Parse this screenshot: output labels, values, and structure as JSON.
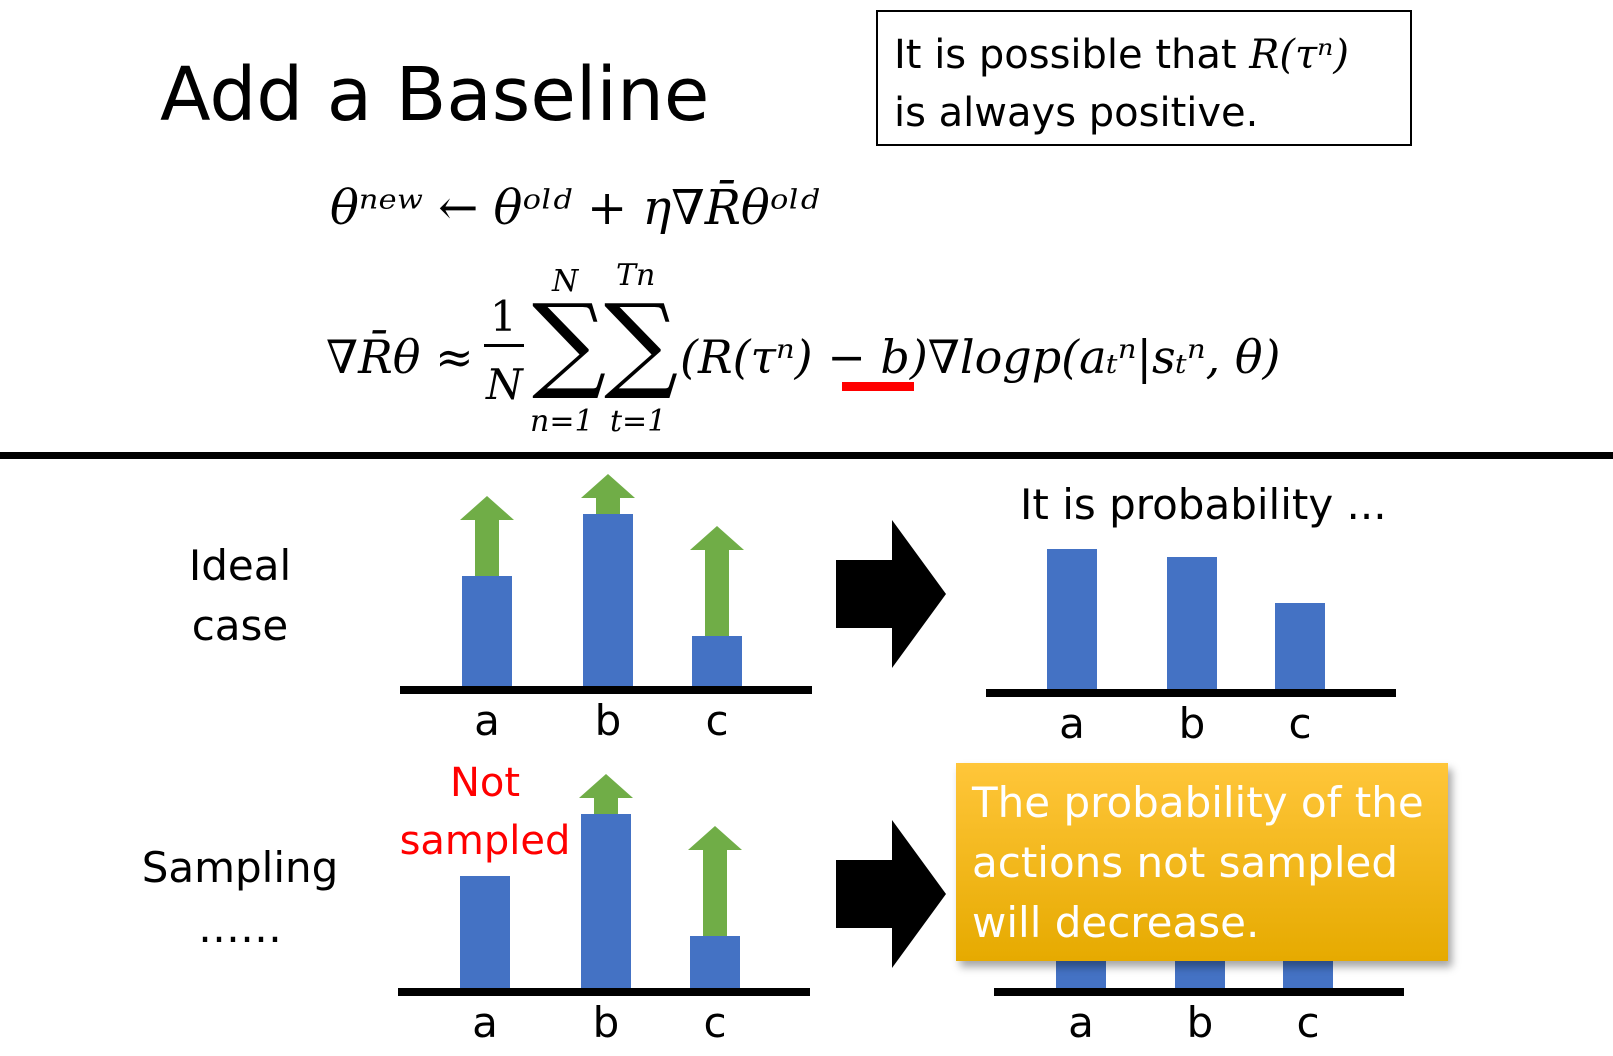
{
  "title": "Add a Baseline",
  "note": {
    "line1": "It is possible that ",
    "math": "R(τⁿ)",
    "line2": "is always positive."
  },
  "equations": {
    "update": "θⁿᵉʷ ← θᵒˡᵈ + η∇R̄θᵒˡᵈ",
    "grad_lhs": "∇R̄θ ≈",
    "frac_num": "1",
    "frac_den": "N",
    "sum1_top": "N",
    "sum1_bottom": "n=1",
    "sum2_top": "Tn",
    "sum2_bottom": "t=1",
    "term_open": "(R(τⁿ) ",
    "term_minus_b": "− b",
    "term_rest": ")∇logp(aₜⁿ|sₜⁿ, θ)"
  },
  "underline_color": "#ff0000",
  "ideal": {
    "label_line1": "Ideal",
    "label_line2": "case",
    "categories": [
      "a",
      "b",
      "c"
    ],
    "bar_values": [
      110,
      172,
      50
    ],
    "arrow_values": [
      80,
      40,
      110
    ],
    "result_title": "It is probability ...",
    "result_values": [
      140,
      132,
      86
    ]
  },
  "sampling": {
    "label_line1": "Sampling",
    "label_line2": "……",
    "categories": [
      "a",
      "b",
      "c"
    ],
    "bar_values": [
      112,
      174,
      52
    ],
    "arrow_values": [
      0,
      40,
      110
    ],
    "not_sampled_line1": "Not",
    "not_sampled_line2": "sampled",
    "result_values": [
      30,
      30,
      30
    ],
    "callout": "The probability of the actions not sampled will decrease."
  },
  "colors": {
    "bar": "#4472c4",
    "arrow": "#70ad47",
    "callout": "#ffc000",
    "accent_red": "#ff0000"
  }
}
